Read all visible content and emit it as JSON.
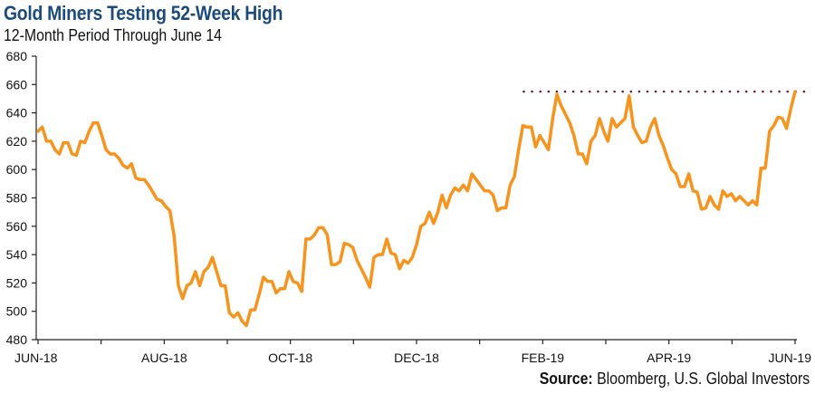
{
  "chart_data": {
    "type": "line",
    "title": "Gold Miners Testing 52-Week High",
    "subtitle": "12-Month Period Through June 14",
    "source_label": "Source:",
    "source_text": " Bloomberg, U.S. Global Investors",
    "xlabel": "",
    "ylabel": "",
    "ylim": [
      480,
      680
    ],
    "yticks": [
      480,
      500,
      520,
      540,
      560,
      580,
      600,
      620,
      640,
      660,
      680
    ],
    "xtick_labels": [
      "JUN-18",
      "AUG-18",
      "OCT-18",
      "DEC-18",
      "FEB-19",
      "APR-19",
      "JUN-19"
    ],
    "x_range_months": [
      0,
      12
    ],
    "grid": false,
    "reference_line": {
      "label": "52-week high",
      "value": 655,
      "start_month": 7.7,
      "style": "dotted",
      "color": "#6b1a2a"
    },
    "series": [
      {
        "name": "Gold Miners",
        "color": "#f7941d",
        "values": [
          627,
          630,
          620,
          620,
          614,
          611,
          619,
          619,
          611,
          610,
          620,
          619,
          627,
          633,
          633,
          624,
          614,
          611,
          611,
          608,
          603,
          601,
          604,
          594,
          593,
          593,
          589,
          584,
          579,
          578,
          574,
          571,
          553,
          518,
          509,
          518,
          520,
          528,
          518,
          528,
          531,
          538,
          528,
          518,
          518,
          499,
          496,
          499,
          493,
          490,
          501,
          501,
          512,
          524,
          521,
          521,
          513,
          516,
          516,
          528,
          521,
          520,
          514,
          551,
          551,
          554,
          559,
          559,
          554,
          533,
          533,
          535,
          548,
          547,
          545,
          536,
          530,
          524,
          517,
          538,
          540,
          540,
          551,
          541,
          540,
          530,
          536,
          534,
          538,
          547,
          560,
          562,
          570,
          562,
          570,
          582,
          573,
          582,
          587,
          585,
          589,
          585,
          597,
          593,
          589,
          585,
          585,
          582,
          571,
          573,
          573,
          589,
          595,
          614,
          631,
          630,
          630,
          616,
          624,
          619,
          614,
          636,
          653,
          645,
          639,
          633,
          624,
          611,
          611,
          604,
          620,
          624,
          636,
          627,
          620,
          636,
          630,
          633,
          636,
          652,
          630,
          624,
          619,
          620,
          630,
          636,
          624,
          617,
          608,
          600,
          597,
          588,
          588,
          597,
          585,
          584,
          572,
          573,
          581,
          575,
          572,
          585,
          581,
          583,
          578,
          581,
          578,
          575,
          578,
          575,
          601,
          601,
          627,
          631,
          637,
          636,
          629,
          643,
          655
        ]
      }
    ]
  }
}
